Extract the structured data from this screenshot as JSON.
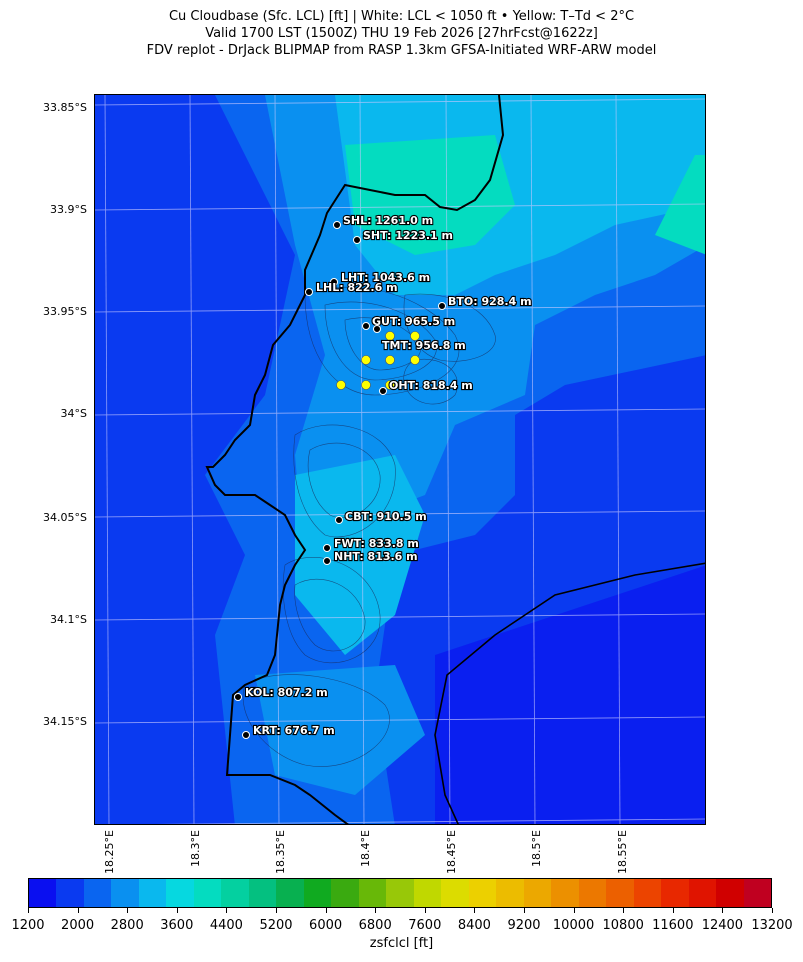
{
  "title": {
    "line1": "Cu Cloudbase (Sfc. LCL) [ft]  |  White: LCL < 1050 ft • Yellow: T–Td < 2°C",
    "line2": "Valid 1700 LST (1500Z) THU 19 Feb 2026 [27hrFcst@1622z]",
    "line3": "FDV replot - DrJack BLIPMAP from RASP 1.3km GFSA-Initiated WRF-ARW model"
  },
  "axes": {
    "lat_ticks": [
      "33.85°S",
      "33.9°S",
      "33.95°S",
      "34°S",
      "34.05°S",
      "34.1°S",
      "34.15°S"
    ],
    "lon_ticks": [
      "18.25°E",
      "18.3°E",
      "18.35°E",
      "18.4°E",
      "18.45°E",
      "18.5°E",
      "18.55°E"
    ]
  },
  "stations": [
    {
      "code": "SHL",
      "label": "SHL: 1261.0 m"
    },
    {
      "code": "SHT",
      "label": "SHT: 1223.1 m"
    },
    {
      "code": "LHT",
      "label": "LHT: 1043.6 m"
    },
    {
      "code": "LHL",
      "label": "LHL: 822.6 m"
    },
    {
      "code": "BTO",
      "label": "BTO: 928.4 m"
    },
    {
      "code": "GUT",
      "label": "GUT: 965.5 m"
    },
    {
      "code": "TMT",
      "label": "TMT: 956.8 m"
    },
    {
      "code": "OHT",
      "label": "OHT: 818.4 m"
    },
    {
      "code": "CBT",
      "label": "CBT: 910.5 m"
    },
    {
      "code": "FWT",
      "label": "FWT: 833.8 m"
    },
    {
      "code": "NHT",
      "label": "NHT: 813.6 m"
    },
    {
      "code": "KOL",
      "label": "KOL: 807.2 m"
    },
    {
      "code": "KRT",
      "label": "KRT: 676.7 m"
    }
  ],
  "colorbar": {
    "label": "zsfclcl [ft]",
    "ticks": [
      "1200",
      "2000",
      "2800",
      "3600",
      "4400",
      "5200",
      "6000",
      "6800",
      "7600",
      "8400",
      "9200",
      "10000",
      "10800",
      "11600",
      "12400",
      "13200"
    ],
    "colors": [
      "#0a0ff0",
      "#0a3af0",
      "#0a65f0",
      "#0a90f0",
      "#0ab8ee",
      "#06d8e0",
      "#04dcc0",
      "#04d0a0",
      "#04c080",
      "#08b050",
      "#10aa20",
      "#3aaa10",
      "#68b808",
      "#98c808",
      "#c0d800",
      "#dcdc00",
      "#ecd000",
      "#ecbc00",
      "#eca800",
      "#ec9000",
      "#ec7800",
      "#ec6000",
      "#ec4400",
      "#e82800",
      "#e01400",
      "#d00000",
      "#c00020"
    ]
  },
  "colors": {
    "station_white_marker": "#000000",
    "station_yellow_marker": "#ffff00"
  }
}
